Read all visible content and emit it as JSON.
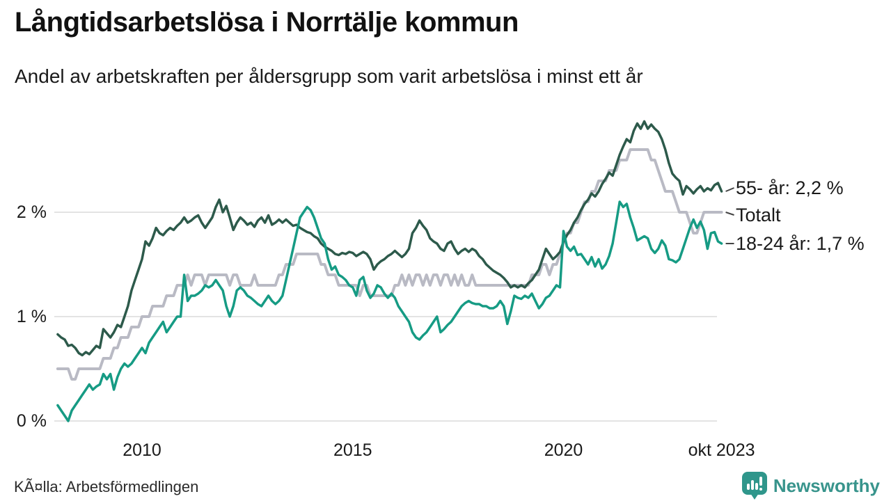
{
  "header": {
    "title": "Långtidsarbetslösa i Norrtälje kommun",
    "subtitle": "Andel av arbetskraften per åldersgrupp som varit arbetslösa i minst ett år"
  },
  "footer": {
    "source": "KÃ¤lla: Arbetsförmedlingen",
    "logo_text": "Newsworthy"
  },
  "colors": {
    "grid": "#e3e3e3",
    "axis_text": "#1a1a1a",
    "leader_dash": "#444444",
    "logo_teal": "#2f968b"
  },
  "chart_data": {
    "type": "line",
    "title": "Långtidsarbetslösa i Norrtälje kommun",
    "subtitle": "Andel av arbetskraften per åldersgrupp som varit arbetslösa i minst ett år",
    "x_unit": "month",
    "x_range": [
      2008.0,
      2023.75
    ],
    "x_end_label": "okt 2023",
    "ylim": [
      0,
      3
    ],
    "grid": "horizontal",
    "legend_position": "right-end-labels",
    "x_ticks": [
      {
        "year": 2010,
        "label": "2010"
      },
      {
        "year": 2015,
        "label": "2015"
      },
      {
        "year": 2020,
        "label": "2020"
      },
      {
        "year": 2023.75,
        "label": "okt 2023"
      }
    ],
    "y_ticks": [
      {
        "value": 0,
        "label": "0 %"
      },
      {
        "value": 1,
        "label": "1 %"
      },
      {
        "value": 2,
        "label": "2 %"
      }
    ],
    "series": [
      {
        "name": "55- år",
        "end_label": "55- år: 2,2 %",
        "end_value_text": "2,2 %",
        "color": "#2d5a4b",
        "width": 3.5,
        "start_year": 2008.0,
        "interval_years": 0.08333,
        "values": [
          0.83,
          0.8,
          0.78,
          0.72,
          0.73,
          0.7,
          0.65,
          0.63,
          0.66,
          0.64,
          0.68,
          0.72,
          0.7,
          0.88,
          0.84,
          0.8,
          0.85,
          0.92,
          0.9,
          1.0,
          1.1,
          1.25,
          1.35,
          1.45,
          1.55,
          1.72,
          1.68,
          1.75,
          1.85,
          1.8,
          1.78,
          1.82,
          1.85,
          1.83,
          1.87,
          1.9,
          1.95,
          1.9,
          1.92,
          1.95,
          1.97,
          1.9,
          1.85,
          1.9,
          1.95,
          2.05,
          2.12,
          2.0,
          2.06,
          1.95,
          1.83,
          1.9,
          1.95,
          1.92,
          1.88,
          1.9,
          1.86,
          1.92,
          1.95,
          1.9,
          1.97,
          1.88,
          1.9,
          1.93,
          1.9,
          1.93,
          1.9,
          1.87,
          1.88,
          1.85,
          1.83,
          1.81,
          1.8,
          1.77,
          1.75,
          1.7,
          1.67,
          1.65,
          1.63,
          1.6,
          1.59,
          1.61,
          1.6,
          1.62,
          1.61,
          1.58,
          1.6,
          1.62,
          1.6,
          1.55,
          1.45,
          1.5,
          1.53,
          1.55,
          1.58,
          1.6,
          1.63,
          1.6,
          1.57,
          1.6,
          1.65,
          1.8,
          1.85,
          1.92,
          1.87,
          1.83,
          1.75,
          1.72,
          1.7,
          1.65,
          1.63,
          1.7,
          1.72,
          1.65,
          1.6,
          1.63,
          1.65,
          1.62,
          1.65,
          1.63,
          1.58,
          1.55,
          1.5,
          1.47,
          1.44,
          1.42,
          1.4,
          1.37,
          1.33,
          1.28,
          1.3,
          1.28,
          1.3,
          1.28,
          1.32,
          1.35,
          1.4,
          1.45,
          1.55,
          1.65,
          1.6,
          1.55,
          1.58,
          1.62,
          1.72,
          1.78,
          1.83,
          1.9,
          1.95,
          2.02,
          2.08,
          2.12,
          2.18,
          2.15,
          2.2,
          2.27,
          2.32,
          2.38,
          2.35,
          2.45,
          2.55,
          2.63,
          2.7,
          2.67,
          2.78,
          2.85,
          2.8,
          2.87,
          2.8,
          2.84,
          2.8,
          2.77,
          2.7,
          2.6,
          2.47,
          2.37,
          2.33,
          2.3,
          2.17,
          2.25,
          2.22,
          2.18,
          2.22,
          2.25,
          2.2,
          2.23,
          2.21,
          2.26,
          2.28,
          2.2
        ]
      },
      {
        "name": "Totalt",
        "end_label": "Totalt",
        "end_value_text": "2,0 %",
        "color": "#b9bac4",
        "width": 4,
        "start_year": 2008.0,
        "interval_years": 0.08333,
        "values": [
          0.5,
          0.5,
          0.5,
          0.5,
          0.4,
          0.4,
          0.5,
          0.5,
          0.5,
          0.5,
          0.5,
          0.5,
          0.5,
          0.6,
          0.6,
          0.6,
          0.7,
          0.7,
          0.8,
          0.8,
          0.8,
          0.9,
          0.9,
          0.9,
          1.0,
          1.0,
          1.0,
          1.1,
          1.1,
          1.1,
          1.1,
          1.2,
          1.2,
          1.2,
          1.3,
          1.3,
          1.3,
          1.4,
          1.3,
          1.4,
          1.4,
          1.4,
          1.3,
          1.4,
          1.4,
          1.4,
          1.4,
          1.4,
          1.4,
          1.3,
          1.4,
          1.4,
          1.3,
          1.3,
          1.3,
          1.3,
          1.4,
          1.3,
          1.3,
          1.3,
          1.3,
          1.3,
          1.3,
          1.4,
          1.4,
          1.5,
          1.5,
          1.5,
          1.6,
          1.6,
          1.6,
          1.6,
          1.6,
          1.6,
          1.6,
          1.5,
          1.5,
          1.4,
          1.4,
          1.4,
          1.3,
          1.3,
          1.3,
          1.3,
          1.3,
          1.3,
          1.2,
          1.3,
          1.3,
          1.2,
          1.2,
          1.2,
          1.2,
          1.2,
          1.2,
          1.2,
          1.3,
          1.3,
          1.4,
          1.3,
          1.4,
          1.3,
          1.4,
          1.4,
          1.3,
          1.4,
          1.3,
          1.4,
          1.4,
          1.3,
          1.4,
          1.4,
          1.3,
          1.4,
          1.3,
          1.4,
          1.3,
          1.3,
          1.4,
          1.3,
          1.3,
          1.3,
          1.3,
          1.3,
          1.3,
          1.3,
          1.3,
          1.3,
          1.3,
          1.3,
          1.3,
          1.3,
          1.3,
          1.3,
          1.3,
          1.4,
          1.4,
          1.4,
          1.5,
          1.5,
          1.4,
          1.5,
          1.5,
          1.6,
          1.7,
          1.8,
          1.8,
          1.9,
          1.9,
          2.0,
          2.1,
          2.1,
          2.2,
          2.2,
          2.3,
          2.3,
          2.3,
          2.4,
          2.4,
          2.4,
          2.5,
          2.5,
          2.5,
          2.6,
          2.6,
          2.6,
          2.6,
          2.6,
          2.6,
          2.5,
          2.5,
          2.4,
          2.3,
          2.2,
          2.2,
          2.2,
          2.1,
          2.0,
          2.0,
          2.0,
          1.9,
          1.8,
          1.8,
          1.9,
          2.0,
          2.0,
          2.0,
          2.0,
          2.0,
          2.0
        ]
      },
      {
        "name": "18-24 år",
        "end_label": "18-24 år: 1,7 %",
        "end_value_text": "1,7 %",
        "color": "#169b84",
        "width": 3.5,
        "start_year": 2008.0,
        "interval_years": 0.08333,
        "values": [
          0.15,
          0.1,
          0.05,
          0.0,
          0.1,
          0.15,
          0.2,
          0.25,
          0.3,
          0.35,
          0.3,
          0.33,
          0.35,
          0.45,
          0.4,
          0.45,
          0.3,
          0.42,
          0.5,
          0.55,
          0.52,
          0.55,
          0.6,
          0.65,
          0.7,
          0.65,
          0.75,
          0.8,
          0.85,
          0.9,
          0.95,
          0.85,
          0.9,
          0.95,
          1.0,
          1.0,
          1.4,
          1.15,
          1.2,
          1.2,
          1.22,
          1.25,
          1.3,
          1.28,
          1.3,
          1.35,
          1.3,
          1.25,
          1.1,
          1.0,
          1.1,
          1.25,
          1.28,
          1.25,
          1.2,
          1.18,
          1.15,
          1.12,
          1.1,
          1.15,
          1.2,
          1.15,
          1.12,
          1.15,
          1.2,
          1.35,
          1.5,
          1.65,
          1.8,
          1.95,
          2.0,
          2.05,
          2.02,
          1.95,
          1.85,
          1.75,
          1.7,
          1.55,
          1.45,
          1.48,
          1.4,
          1.38,
          1.35,
          1.3,
          1.28,
          1.2,
          1.35,
          1.38,
          1.25,
          1.18,
          1.22,
          1.3,
          1.28,
          1.22,
          1.18,
          1.22,
          1.18,
          1.1,
          1.05,
          1.0,
          0.95,
          0.85,
          0.8,
          0.78,
          0.82,
          0.85,
          0.9,
          0.95,
          1.0,
          0.85,
          0.88,
          0.92,
          0.95,
          1.0,
          1.05,
          1.1,
          1.13,
          1.15,
          1.13,
          1.12,
          1.12,
          1.1,
          1.1,
          1.08,
          1.08,
          1.1,
          1.15,
          1.1,
          0.93,
          1.05,
          1.2,
          1.18,
          1.17,
          1.2,
          1.18,
          1.22,
          1.15,
          1.08,
          1.12,
          1.18,
          1.2,
          1.25,
          1.3,
          1.28,
          1.82,
          1.67,
          1.63,
          1.67,
          1.59,
          1.6,
          1.55,
          1.5,
          1.57,
          1.48,
          1.55,
          1.46,
          1.5,
          1.58,
          1.7,
          1.9,
          2.1,
          2.05,
          2.08,
          1.95,
          1.85,
          1.73,
          1.75,
          1.77,
          1.75,
          1.65,
          1.61,
          1.65,
          1.73,
          1.68,
          1.55,
          1.54,
          1.52,
          1.55,
          1.65,
          1.75,
          1.85,
          1.93,
          1.85,
          1.91,
          1.83,
          1.65,
          1.8,
          1.81,
          1.72,
          1.7
        ]
      }
    ]
  }
}
